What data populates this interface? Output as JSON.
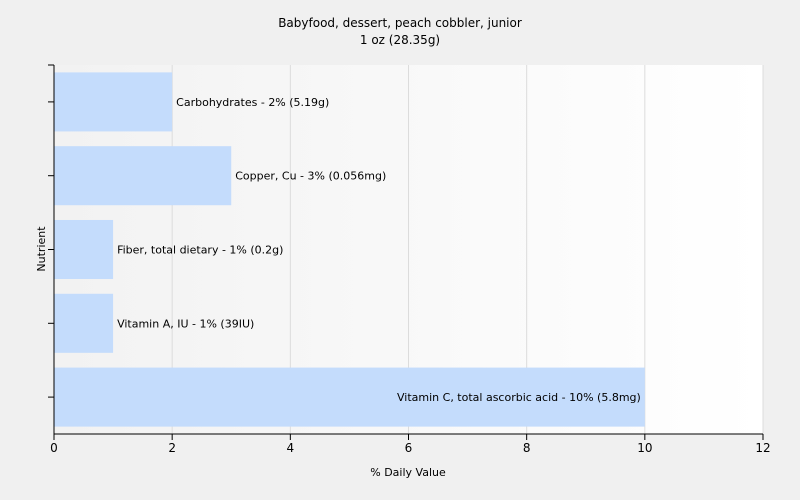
{
  "chart_data": {
    "type": "bar",
    "orientation": "horizontal",
    "title": "Babyfood, dessert, peach cobbler, junior",
    "subtitle": "1 oz (28.35g)",
    "xlabel": "% Daily Value",
    "ylabel": "Nutrient",
    "xlim": [
      0,
      12
    ],
    "xticks": [
      0,
      2,
      4,
      6,
      8,
      10,
      12
    ],
    "grid": true,
    "bar_color": "#c4dcfc",
    "categories": [
      "Carbohydrates",
      "Copper, Cu",
      "Fiber, total dietary",
      "Vitamin A, IU",
      "Vitamin C, total ascorbic acid"
    ],
    "values": [
      2,
      3,
      1,
      1,
      10
    ],
    "labels": [
      "Carbohydrates - 2% (5.19g)",
      "Copper, Cu - 3% (0.056mg)",
      "Fiber, total dietary - 1% (0.2g)",
      "Vitamin A, IU - 1% (39IU)",
      "Vitamin C, total ascorbic acid - 10% (5.8mg)"
    ]
  }
}
